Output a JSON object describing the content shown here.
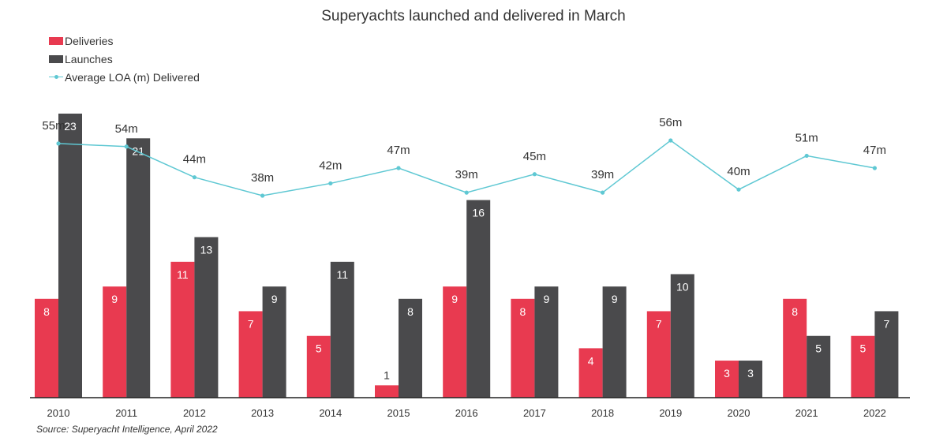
{
  "chart_data": {
    "type": "bar",
    "title": "Superyachts launched and delivered in March",
    "categories": [
      "2010",
      "2011",
      "2012",
      "2013",
      "2014",
      "2015",
      "2016",
      "2017",
      "2018",
      "2019",
      "2020",
      "2021",
      "2022"
    ],
    "series": [
      {
        "name": "Deliveries",
        "type": "bar",
        "color": "#e83a50",
        "values": [
          8,
          9,
          11,
          7,
          5,
          1,
          9,
          8,
          4,
          7,
          3,
          8,
          5
        ]
      },
      {
        "name": "Launches",
        "type": "bar",
        "color": "#4a4a4c",
        "values": [
          23,
          21,
          13,
          9,
          11,
          8,
          16,
          9,
          9,
          10,
          3,
          5,
          7
        ]
      },
      {
        "name": "Average LOA (m) Delivered",
        "type": "line",
        "color": "#5fc8d3",
        "values": [
          55,
          54,
          44,
          38,
          42,
          47,
          39,
          45,
          39,
          56,
          40,
          51,
          47
        ]
      }
    ],
    "line_labels": [
      "55m",
      "54m",
      "44m",
      "38m",
      "42m",
      "47m",
      "39m",
      "45m",
      "39m",
      "56m",
      "40m",
      "51m",
      "47m"
    ],
    "bar_ylim": [
      0,
      23
    ],
    "line_ylim": [
      0,
      56
    ],
    "legend_position": "top-left",
    "grid": false
  },
  "source": "Source: Superyacht Intelligence, April 2022"
}
